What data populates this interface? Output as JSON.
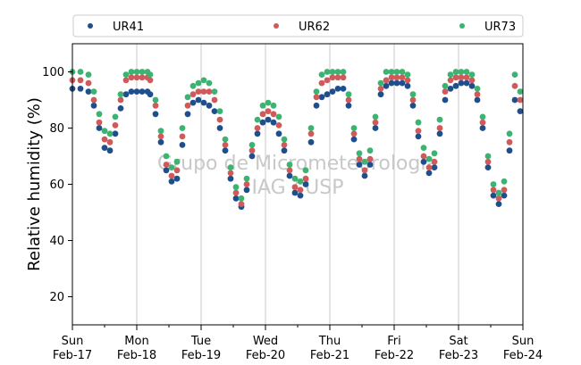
{
  "chart_data": {
    "type": "scatter",
    "ylabel": "Relative humidity (%)",
    "ylim": [
      10,
      110
    ],
    "yticks": [
      20,
      40,
      60,
      80,
      100
    ],
    "xlim": [
      "2019-02-17T00:00",
      "2019-02-24T00:00"
    ],
    "xticks": [
      {
        "date": "2019-02-17",
        "day": "Sun",
        "date_label": "Feb-17"
      },
      {
        "date": "2019-02-18",
        "day": "Mon",
        "date_label": "Feb-18"
      },
      {
        "date": "2019-02-19",
        "day": "Tue",
        "date_label": "Feb-19"
      },
      {
        "date": "2019-02-20",
        "day": "Wed",
        "date_label": "Feb-20"
      },
      {
        "date": "2019-02-21",
        "day": "Thu",
        "date_label": "Feb-21"
      },
      {
        "date": "2019-02-22",
        "day": "Fri",
        "date_label": "Feb-22"
      },
      {
        "date": "2019-02-23",
        "day": "Sat",
        "date_label": "Feb-23"
      },
      {
        "date": "2019-02-24",
        "day": "Sun",
        "date_label": "Feb-24"
      }
    ],
    "grid": "vertical-major",
    "legend_position": "top",
    "watermark": [
      "Grupo de Micrometeorologia",
      "IAG / USP"
    ],
    "series": [
      {
        "name": "UR41",
        "color": "#1f4e8c",
        "points": [
          [
            "2019-02-17T00:00",
            94
          ],
          [
            "2019-02-17T03:00",
            94
          ],
          [
            "2019-02-17T06:00",
            93
          ],
          [
            "2019-02-17T08:00",
            88
          ],
          [
            "2019-02-17T10:00",
            80
          ],
          [
            "2019-02-17T12:00",
            73
          ],
          [
            "2019-02-17T14:00",
            72
          ],
          [
            "2019-02-17T16:00",
            78
          ],
          [
            "2019-02-17T18:00",
            87
          ],
          [
            "2019-02-17T20:00",
            92
          ],
          [
            "2019-02-17T22:00",
            93
          ],
          [
            "2019-02-18T00:00",
            93
          ],
          [
            "2019-02-18T02:00",
            93
          ],
          [
            "2019-02-18T04:00",
            93
          ],
          [
            "2019-02-18T05:00",
            92
          ],
          [
            "2019-02-18T07:00",
            85
          ],
          [
            "2019-02-18T09:00",
            75
          ],
          [
            "2019-02-18T11:00",
            65
          ],
          [
            "2019-02-18T13:00",
            61
          ],
          [
            "2019-02-18T15:00",
            62
          ],
          [
            "2019-02-18T17:00",
            74
          ],
          [
            "2019-02-18T19:00",
            85
          ],
          [
            "2019-02-18T21:00",
            89
          ],
          [
            "2019-02-18T23:00",
            90
          ],
          [
            "2019-02-19T01:00",
            89
          ],
          [
            "2019-02-19T03:00",
            88
          ],
          [
            "2019-02-19T05:00",
            86
          ],
          [
            "2019-02-19T07:00",
            80
          ],
          [
            "2019-02-19T09:00",
            72
          ],
          [
            "2019-02-19T11:00",
            62
          ],
          [
            "2019-02-19T13:00",
            55
          ],
          [
            "2019-02-19T15:00",
            52
          ],
          [
            "2019-02-19T17:00",
            58
          ],
          [
            "2019-02-19T19:00",
            70
          ],
          [
            "2019-02-19T21:00",
            78
          ],
          [
            "2019-02-19T23:00",
            82
          ],
          [
            "2019-02-20T01:00",
            83
          ],
          [
            "2019-02-20T03:00",
            82
          ],
          [
            "2019-02-20T05:00",
            78
          ],
          [
            "2019-02-20T07:00",
            72
          ],
          [
            "2019-02-20T09:00",
            63
          ],
          [
            "2019-02-20T11:00",
            57
          ],
          [
            "2019-02-20T13:00",
            56
          ],
          [
            "2019-02-20T15:00",
            60
          ],
          [
            "2019-02-20T17:00",
            75
          ],
          [
            "2019-02-20T19:00",
            88
          ],
          [
            "2019-02-20T21:00",
            91
          ],
          [
            "2019-02-20T23:00",
            92
          ],
          [
            "2019-02-21T01:00",
            93
          ],
          [
            "2019-02-21T03:00",
            94
          ],
          [
            "2019-02-21T05:00",
            94
          ],
          [
            "2019-02-21T07:00",
            88
          ],
          [
            "2019-02-21T09:00",
            76
          ],
          [
            "2019-02-21T11:00",
            67
          ],
          [
            "2019-02-21T13:00",
            63
          ],
          [
            "2019-02-21T15:00",
            67
          ],
          [
            "2019-02-21T17:00",
            80
          ],
          [
            "2019-02-21T19:00",
            92
          ],
          [
            "2019-02-21T21:00",
            95
          ],
          [
            "2019-02-21T23:00",
            96
          ],
          [
            "2019-02-22T01:00",
            96
          ],
          [
            "2019-02-22T03:00",
            96
          ],
          [
            "2019-02-22T05:00",
            95
          ],
          [
            "2019-02-22T07:00",
            88
          ],
          [
            "2019-02-22T09:00",
            77
          ],
          [
            "2019-02-22T11:00",
            68
          ],
          [
            "2019-02-22T13:00",
            64
          ],
          [
            "2019-02-22T15:00",
            66
          ],
          [
            "2019-02-22T17:00",
            78
          ],
          [
            "2019-02-22T19:00",
            90
          ],
          [
            "2019-02-22T21:00",
            94
          ],
          [
            "2019-02-22T23:00",
            95
          ],
          [
            "2019-02-23T01:00",
            96
          ],
          [
            "2019-02-23T03:00",
            96
          ],
          [
            "2019-02-23T05:00",
            95
          ],
          [
            "2019-02-23T07:00",
            90
          ],
          [
            "2019-02-23T09:00",
            80
          ],
          [
            "2019-02-23T11:00",
            66
          ],
          [
            "2019-02-23T13:00",
            56
          ],
          [
            "2019-02-23T15:00",
            53
          ],
          [
            "2019-02-23T17:00",
            56
          ],
          [
            "2019-02-23T19:00",
            72
          ],
          [
            "2019-02-23T21:00",
            90
          ],
          [
            "2019-02-23T23:00",
            86
          ]
        ]
      },
      {
        "name": "UR62",
        "color": "#d05a5a",
        "points": [
          [
            "2019-02-17T00:00",
            97
          ],
          [
            "2019-02-17T03:00",
            97
          ],
          [
            "2019-02-17T06:00",
            96
          ],
          [
            "2019-02-17T08:00",
            90
          ],
          [
            "2019-02-17T10:00",
            82
          ],
          [
            "2019-02-17T12:00",
            76
          ],
          [
            "2019-02-17T14:00",
            75
          ],
          [
            "2019-02-17T16:00",
            81
          ],
          [
            "2019-02-17T18:00",
            90
          ],
          [
            "2019-02-17T20:00",
            97
          ],
          [
            "2019-02-17T22:00",
            98
          ],
          [
            "2019-02-18T00:00",
            98
          ],
          [
            "2019-02-18T02:00",
            98
          ],
          [
            "2019-02-18T04:00",
            98
          ],
          [
            "2019-02-18T05:00",
            97
          ],
          [
            "2019-02-18T07:00",
            88
          ],
          [
            "2019-02-18T09:00",
            77
          ],
          [
            "2019-02-18T11:00",
            67
          ],
          [
            "2019-02-18T13:00",
            63
          ],
          [
            "2019-02-18T15:00",
            65
          ],
          [
            "2019-02-18T17:00",
            77
          ],
          [
            "2019-02-18T19:00",
            88
          ],
          [
            "2019-02-18T21:00",
            92
          ],
          [
            "2019-02-18T23:00",
            93
          ],
          [
            "2019-02-19T01:00",
            93
          ],
          [
            "2019-02-19T03:00",
            93
          ],
          [
            "2019-02-19T05:00",
            90
          ],
          [
            "2019-02-19T07:00",
            83
          ],
          [
            "2019-02-19T09:00",
            74
          ],
          [
            "2019-02-19T11:00",
            64
          ],
          [
            "2019-02-19T13:00",
            57
          ],
          [
            "2019-02-19T15:00",
            53
          ],
          [
            "2019-02-19T17:00",
            60
          ],
          [
            "2019-02-19T19:00",
            72
          ],
          [
            "2019-02-19T21:00",
            80
          ],
          [
            "2019-02-19T23:00",
            85
          ],
          [
            "2019-02-20T01:00",
            86
          ],
          [
            "2019-02-20T03:00",
            85
          ],
          [
            "2019-02-20T05:00",
            81
          ],
          [
            "2019-02-20T07:00",
            74
          ],
          [
            "2019-02-20T09:00",
            65
          ],
          [
            "2019-02-20T11:00",
            59
          ],
          [
            "2019-02-20T13:00",
            58
          ],
          [
            "2019-02-20T15:00",
            62
          ],
          [
            "2019-02-20T17:00",
            78
          ],
          [
            "2019-02-20T19:00",
            91
          ],
          [
            "2019-02-20T21:00",
            96
          ],
          [
            "2019-02-20T23:00",
            97
          ],
          [
            "2019-02-21T01:00",
            98
          ],
          [
            "2019-02-21T03:00",
            98
          ],
          [
            "2019-02-21T05:00",
            98
          ],
          [
            "2019-02-21T07:00",
            90
          ],
          [
            "2019-02-21T09:00",
            78
          ],
          [
            "2019-02-21T11:00",
            69
          ],
          [
            "2019-02-21T13:00",
            65
          ],
          [
            "2019-02-21T15:00",
            69
          ],
          [
            "2019-02-21T17:00",
            82
          ],
          [
            "2019-02-21T19:00",
            94
          ],
          [
            "2019-02-21T21:00",
            97
          ],
          [
            "2019-02-21T23:00",
            98
          ],
          [
            "2019-02-22T01:00",
            98
          ],
          [
            "2019-02-22T03:00",
            98
          ],
          [
            "2019-02-22T05:00",
            97
          ],
          [
            "2019-02-22T07:00",
            90
          ],
          [
            "2019-02-22T09:00",
            79
          ],
          [
            "2019-02-22T11:00",
            70
          ],
          [
            "2019-02-22T13:00",
            66
          ],
          [
            "2019-02-22T15:00",
            68
          ],
          [
            "2019-02-22T17:00",
            80
          ],
          [
            "2019-02-22T19:00",
            93
          ],
          [
            "2019-02-22T21:00",
            97
          ],
          [
            "2019-02-22T23:00",
            98
          ],
          [
            "2019-02-23T01:00",
            98
          ],
          [
            "2019-02-23T03:00",
            98
          ],
          [
            "2019-02-23T05:00",
            97
          ],
          [
            "2019-02-23T07:00",
            92
          ],
          [
            "2019-02-23T09:00",
            82
          ],
          [
            "2019-02-23T11:00",
            68
          ],
          [
            "2019-02-23T13:00",
            58
          ],
          [
            "2019-02-23T15:00",
            55
          ],
          [
            "2019-02-23T17:00",
            58
          ],
          [
            "2019-02-23T19:00",
            75
          ],
          [
            "2019-02-23T21:00",
            95
          ],
          [
            "2019-02-23T23:00",
            90
          ]
        ]
      },
      {
        "name": "UR73",
        "color": "#3cb371",
        "points": [
          [
            "2019-02-17T00:00",
            100
          ],
          [
            "2019-02-17T03:00",
            100
          ],
          [
            "2019-02-17T06:00",
            99
          ],
          [
            "2019-02-17T08:00",
            93
          ],
          [
            "2019-02-17T10:00",
            85
          ],
          [
            "2019-02-17T12:00",
            79
          ],
          [
            "2019-02-17T14:00",
            78
          ],
          [
            "2019-02-17T16:00",
            84
          ],
          [
            "2019-02-17T18:00",
            92
          ],
          [
            "2019-02-17T20:00",
            99
          ],
          [
            "2019-02-17T22:00",
            100
          ],
          [
            "2019-02-18T00:00",
            100
          ],
          [
            "2019-02-18T02:00",
            100
          ],
          [
            "2019-02-18T04:00",
            100
          ],
          [
            "2019-02-18T05:00",
            99
          ],
          [
            "2019-02-18T07:00",
            90
          ],
          [
            "2019-02-18T09:00",
            79
          ],
          [
            "2019-02-18T11:00",
            70
          ],
          [
            "2019-02-18T13:00",
            66
          ],
          [
            "2019-02-18T15:00",
            68
          ],
          [
            "2019-02-18T17:00",
            80
          ],
          [
            "2019-02-18T19:00",
            91
          ],
          [
            "2019-02-18T21:00",
            95
          ],
          [
            "2019-02-18T23:00",
            96
          ],
          [
            "2019-02-19T01:00",
            97
          ],
          [
            "2019-02-19T03:00",
            96
          ],
          [
            "2019-02-19T05:00",
            93
          ],
          [
            "2019-02-19T07:00",
            86
          ],
          [
            "2019-02-19T09:00",
            76
          ],
          [
            "2019-02-19T11:00",
            66
          ],
          [
            "2019-02-19T13:00",
            59
          ],
          [
            "2019-02-19T15:00",
            55
          ],
          [
            "2019-02-19T17:00",
            62
          ],
          [
            "2019-02-19T19:00",
            74
          ],
          [
            "2019-02-19T21:00",
            83
          ],
          [
            "2019-02-19T23:00",
            88
          ],
          [
            "2019-02-20T01:00",
            89
          ],
          [
            "2019-02-20T03:00",
            88
          ],
          [
            "2019-02-20T05:00",
            84
          ],
          [
            "2019-02-20T07:00",
            76
          ],
          [
            "2019-02-20T09:00",
            67
          ],
          [
            "2019-02-20T11:00",
            62
          ],
          [
            "2019-02-20T13:00",
            61
          ],
          [
            "2019-02-20T15:00",
            65
          ],
          [
            "2019-02-20T17:00",
            80
          ],
          [
            "2019-02-20T19:00",
            93
          ],
          [
            "2019-02-20T21:00",
            99
          ],
          [
            "2019-02-20T23:00",
            100
          ],
          [
            "2019-02-21T01:00",
            100
          ],
          [
            "2019-02-21T03:00",
            100
          ],
          [
            "2019-02-21T05:00",
            100
          ],
          [
            "2019-02-21T07:00",
            92
          ],
          [
            "2019-02-21T09:00",
            80
          ],
          [
            "2019-02-21T11:00",
            71
          ],
          [
            "2019-02-21T13:00",
            68
          ],
          [
            "2019-02-21T15:00",
            72
          ],
          [
            "2019-02-21T17:00",
            84
          ],
          [
            "2019-02-21T19:00",
            96
          ],
          [
            "2019-02-21T21:00",
            100
          ],
          [
            "2019-02-21T23:00",
            100
          ],
          [
            "2019-02-22T01:00",
            100
          ],
          [
            "2019-02-22T03:00",
            100
          ],
          [
            "2019-02-22T05:00",
            99
          ],
          [
            "2019-02-22T07:00",
            92
          ],
          [
            "2019-02-22T09:00",
            82
          ],
          [
            "2019-02-22T11:00",
            73
          ],
          [
            "2019-02-22T13:00",
            69
          ],
          [
            "2019-02-22T15:00",
            71
          ],
          [
            "2019-02-22T17:00",
            83
          ],
          [
            "2019-02-22T19:00",
            95
          ],
          [
            "2019-02-22T21:00",
            99
          ],
          [
            "2019-02-22T23:00",
            100
          ],
          [
            "2019-02-23T01:00",
            100
          ],
          [
            "2019-02-23T03:00",
            100
          ],
          [
            "2019-02-23T05:00",
            99
          ],
          [
            "2019-02-23T07:00",
            94
          ],
          [
            "2019-02-23T09:00",
            84
          ],
          [
            "2019-02-23T11:00",
            70
          ],
          [
            "2019-02-23T13:00",
            60
          ],
          [
            "2019-02-23T15:00",
            57
          ],
          [
            "2019-02-23T17:00",
            61
          ],
          [
            "2019-02-23T19:00",
            78
          ],
          [
            "2019-02-23T21:00",
            99
          ],
          [
            "2019-02-23T23:00",
            93
          ]
        ]
      }
    ]
  }
}
